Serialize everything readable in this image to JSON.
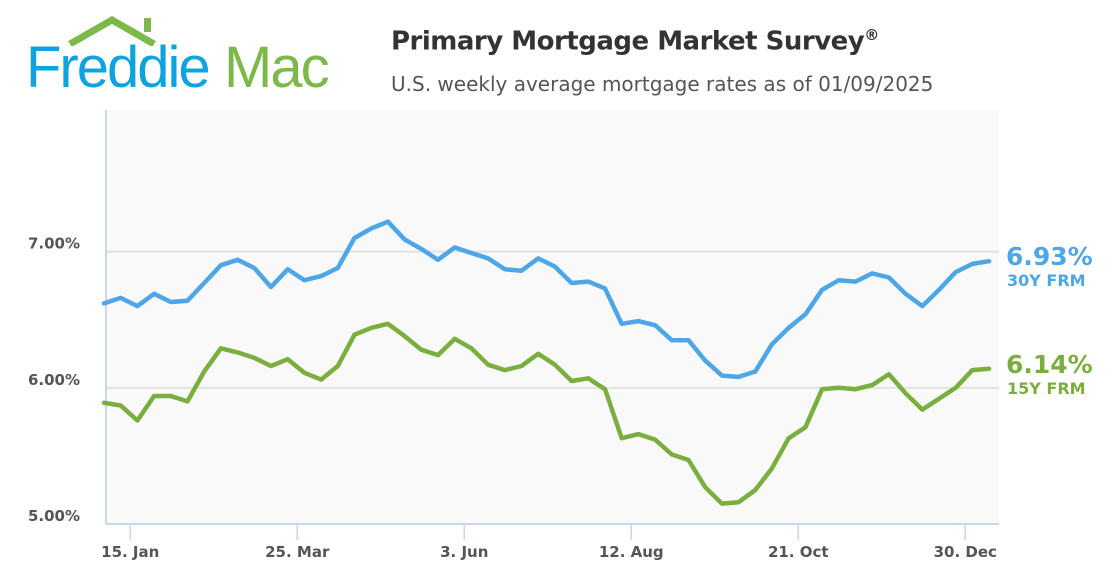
{
  "logo": {
    "text_freddie": "Freddie",
    "text_mac": "Mac",
    "colors": {
      "freddie": "#0ea3df",
      "mac": "#7cb84a"
    }
  },
  "header": {
    "title": "Primary Mortgage Market Survey",
    "title_mark": "®",
    "subtitle": "U.S. weekly average mortgage rates as of 01/09/2025"
  },
  "chart_data": {
    "type": "line",
    "title": "Primary Mortgage Market Survey®",
    "subtitle": "U.S. weekly average mortgage rates as of 01/09/2025",
    "xlabel": "",
    "ylabel": "",
    "ylim": [
      5.0,
      8.04
    ],
    "yticks": [
      {
        "value": 5,
        "label": "5.00%"
      },
      {
        "value": 6,
        "label": "6.00%"
      },
      {
        "value": 7,
        "label": "7.00%"
      }
    ],
    "xticks": [
      {
        "date": "2024-01-15",
        "label": "15. Jan"
      },
      {
        "date": "2024-03-25",
        "label": "25. Mar"
      },
      {
        "date": "2024-06-03",
        "label": "3. Jun"
      },
      {
        "date": "2024-08-12",
        "label": "12. Aug"
      },
      {
        "date": "2024-10-21",
        "label": "21. Oct"
      },
      {
        "date": "2024-12-30",
        "label": "30. Dec"
      }
    ],
    "grid": true,
    "x_start": "2024-01-04",
    "week_step_days": 7,
    "series": [
      {
        "name": "30Y FRM",
        "color": "#4ea6e6",
        "end_label": "6.93%",
        "values": [
          6.62,
          6.66,
          6.6,
          6.69,
          6.63,
          6.64,
          6.77,
          6.9,
          6.94,
          6.88,
          6.74,
          6.87,
          6.79,
          6.82,
          6.88,
          7.1,
          7.17,
          7.22,
          7.09,
          7.02,
          6.94,
          7.03,
          6.99,
          6.95,
          6.87,
          6.86,
          6.95,
          6.89,
          6.77,
          6.78,
          6.73,
          6.47,
          6.49,
          6.46,
          6.35,
          6.35,
          6.2,
          6.09,
          6.08,
          6.12,
          6.32,
          6.44,
          6.54,
          6.72,
          6.79,
          6.78,
          6.84,
          6.81,
          6.69,
          6.6,
          6.72,
          6.85,
          6.91,
          6.93
        ]
      },
      {
        "name": "15Y FRM",
        "color": "#7aae3f",
        "end_label": "6.14%",
        "values": [
          5.89,
          5.87,
          5.76,
          5.94,
          5.94,
          5.9,
          6.12,
          6.29,
          6.26,
          6.22,
          6.16,
          6.21,
          6.11,
          6.06,
          6.16,
          6.39,
          6.44,
          6.47,
          6.38,
          6.28,
          6.24,
          6.36,
          6.29,
          6.17,
          6.13,
          6.16,
          6.25,
          6.17,
          6.05,
          6.07,
          5.99,
          5.63,
          5.66,
          5.62,
          5.51,
          5.47,
          5.27,
          5.15,
          5.16,
          5.25,
          5.41,
          5.63,
          5.71,
          5.99,
          6.0,
          5.99,
          6.02,
          6.1,
          5.96,
          5.84,
          5.92,
          6.0,
          6.13,
          6.14
        ]
      }
    ]
  }
}
